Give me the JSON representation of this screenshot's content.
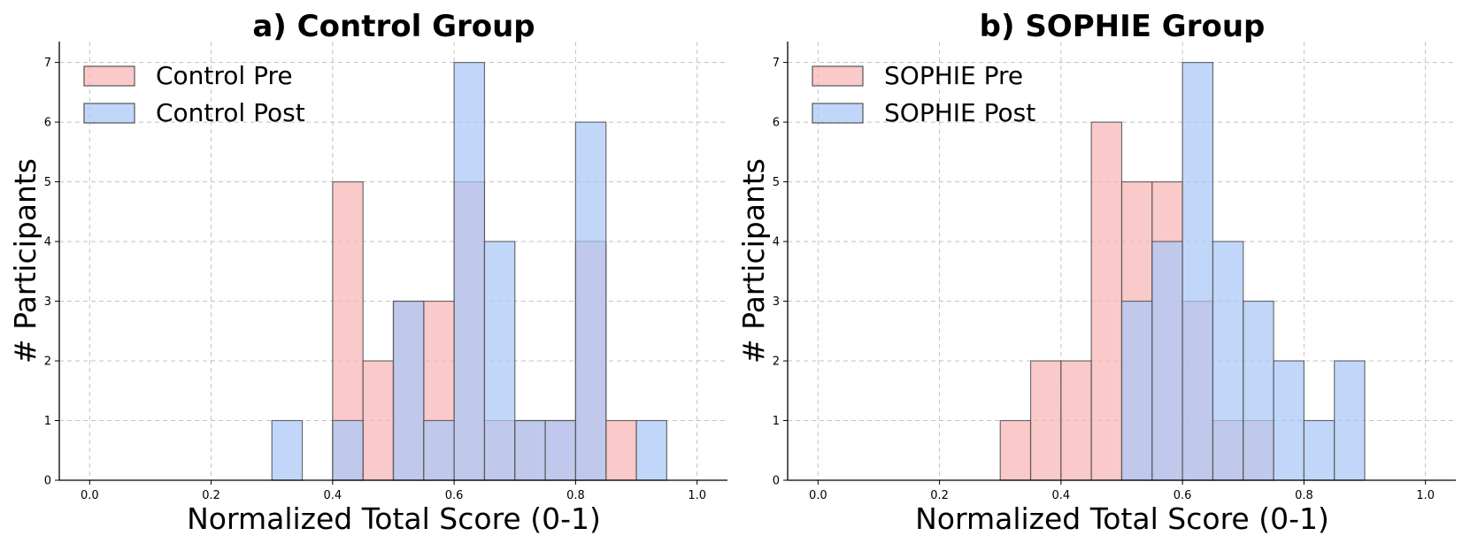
{
  "chart_data": [
    {
      "type": "histogram",
      "title": "a) Control Group",
      "xlabel": "Normalized Total Score (0-1)",
      "ylabel": "# Participants",
      "xlim": [
        -0.05,
        1.05
      ],
      "ylim": [
        0,
        7.35
      ],
      "xticks": [
        0.0,
        0.2,
        0.4,
        0.6,
        0.8,
        1.0
      ],
      "xtick_labels": [
        "0.0",
        "0.2",
        "0.4",
        "0.6",
        "0.8",
        "1.0"
      ],
      "yticks": [
        0,
        1,
        2,
        3,
        4,
        5,
        6,
        7
      ],
      "ytick_labels": [
        "0",
        "1",
        "2",
        "3",
        "4",
        "5",
        "6",
        "7"
      ],
      "grid": true,
      "legend_position": "top-left",
      "bin_edges": [
        0.0,
        0.05,
        0.1,
        0.15,
        0.2,
        0.25,
        0.3,
        0.35,
        0.4,
        0.45,
        0.5,
        0.55,
        0.6,
        0.65,
        0.7,
        0.75,
        0.8,
        0.85,
        0.9,
        0.95,
        1.0
      ],
      "series": [
        {
          "name": "Control Pre",
          "color": "#f8b4b4",
          "values": [
            0,
            0,
            0,
            0,
            0,
            0,
            0,
            0,
            5,
            2,
            3,
            3,
            5,
            1,
            1,
            1,
            4,
            1,
            0,
            0
          ]
        },
        {
          "name": "Control Post",
          "color": "#a9c8f8",
          "values": [
            0,
            0,
            0,
            0,
            0,
            0,
            1,
            0,
            1,
            0,
            3,
            1,
            7,
            4,
            1,
            1,
            6,
            0,
            1,
            0
          ]
        }
      ]
    },
    {
      "type": "histogram",
      "title": "b) SOPHIE Group",
      "xlabel": "Normalized Total Score (0-1)",
      "ylabel": "# Participants",
      "xlim": [
        -0.05,
        1.05
      ],
      "ylim": [
        0,
        7.35
      ],
      "xticks": [
        0.0,
        0.2,
        0.4,
        0.6,
        0.8,
        1.0
      ],
      "xtick_labels": [
        "0.0",
        "0.2",
        "0.4",
        "0.6",
        "0.8",
        "1.0"
      ],
      "yticks": [
        0,
        1,
        2,
        3,
        4,
        5,
        6,
        7
      ],
      "ytick_labels": [
        "0",
        "1",
        "2",
        "3",
        "4",
        "5",
        "6",
        "7"
      ],
      "grid": true,
      "legend_position": "top-left",
      "bin_edges": [
        0.0,
        0.05,
        0.1,
        0.15,
        0.2,
        0.25,
        0.3,
        0.35,
        0.4,
        0.45,
        0.5,
        0.55,
        0.6,
        0.65,
        0.7,
        0.75,
        0.8,
        0.85,
        0.9,
        0.95,
        1.0
      ],
      "series": [
        {
          "name": "SOPHIE Pre",
          "color": "#f8b4b4",
          "values": [
            0,
            0,
            0,
            0,
            0,
            0,
            1,
            2,
            2,
            6,
            5,
            5,
            3,
            1,
            1,
            0,
            0,
            0,
            0,
            0
          ]
        },
        {
          "name": "SOPHIE Post",
          "color": "#a9c8f8",
          "values": [
            0,
            0,
            0,
            0,
            0,
            0,
            0,
            0,
            0,
            0,
            3,
            4,
            7,
            4,
            3,
            2,
            1,
            2,
            0,
            0
          ]
        }
      ]
    }
  ]
}
